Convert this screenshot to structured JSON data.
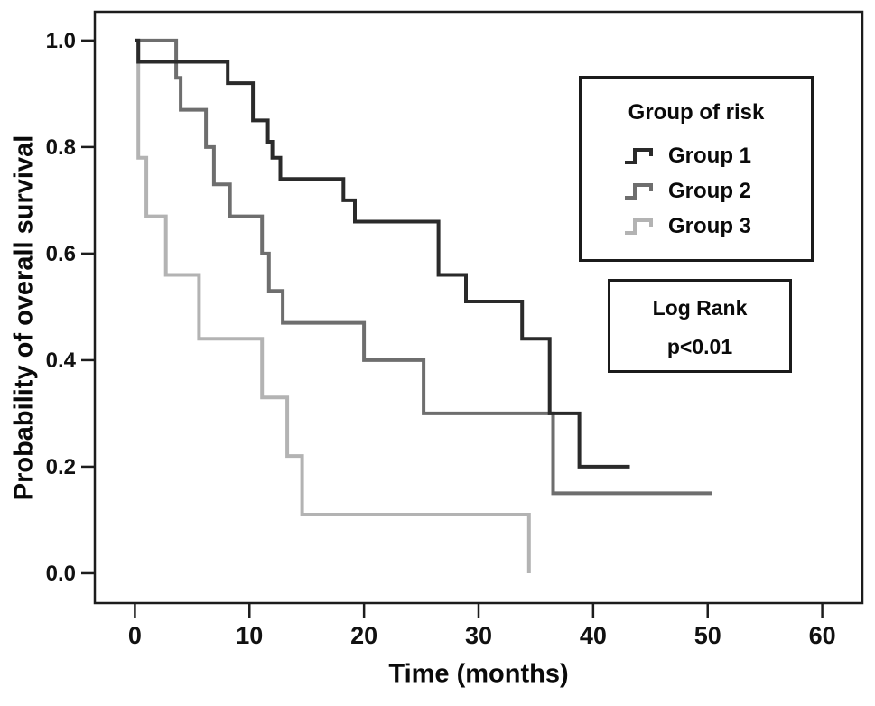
{
  "figure": {
    "x_axis_label": "Time (months)",
    "y_axis_label": "Probability of overall survival"
  },
  "legend": {
    "title": "Group of risk",
    "items": [
      {
        "label": "Group 1",
        "color": "#2a2a2a"
      },
      {
        "label": "Group 2",
        "color": "#6e6e6e"
      },
      {
        "label": "Group 3",
        "color": "#b3b3b3"
      }
    ]
  },
  "annotation": {
    "line1": "Log Rank",
    "line2": "p<0.01"
  },
  "chart_data": {
    "type": "line",
    "subtype": "kaplan-meier-step",
    "title": "",
    "xlabel": "Time (months)",
    "ylabel": "Probability of overall survival",
    "xlim": [
      -3.5,
      63.5
    ],
    "ylim": [
      -0.056,
      1.054
    ],
    "x_ticks": [
      0,
      10,
      20,
      30,
      40,
      50,
      60
    ],
    "y_ticks": [
      0.0,
      0.2,
      0.4,
      0.6,
      0.8,
      1.0
    ],
    "grid": false,
    "legend_position": "upper right",
    "legend_title": "Group of risk",
    "annotation_text": "Log Rank p<0.01",
    "series": [
      {
        "name": "Group 1",
        "color": "#2a2a2a",
        "points": [
          [
            0,
            1.0
          ],
          [
            0.3,
            0.96
          ],
          [
            8.1,
            0.92
          ],
          [
            10.3,
            0.85
          ],
          [
            11.6,
            0.81
          ],
          [
            12.0,
            0.78
          ],
          [
            12.7,
            0.74
          ],
          [
            18.2,
            0.7
          ],
          [
            19.2,
            0.66
          ],
          [
            26.5,
            0.56
          ],
          [
            28.9,
            0.51
          ],
          [
            33.8,
            0.44
          ],
          [
            36.2,
            0.3
          ],
          [
            38.8,
            0.2
          ]
        ],
        "end_time": 43.2
      },
      {
        "name": "Group 2",
        "color": "#6e6e6e",
        "points": [
          [
            0,
            1.0
          ],
          [
            3.6,
            0.93
          ],
          [
            4.0,
            0.87
          ],
          [
            6.2,
            0.8
          ],
          [
            6.9,
            0.73
          ],
          [
            8.3,
            0.67
          ],
          [
            11.1,
            0.6
          ],
          [
            11.7,
            0.53
          ],
          [
            12.9,
            0.47
          ],
          [
            20.0,
            0.4
          ],
          [
            25.2,
            0.3
          ],
          [
            36.5,
            0.15
          ]
        ],
        "end_time": 50.4
      },
      {
        "name": "Group 3",
        "color": "#b3b3b3",
        "points": [
          [
            0,
            1.0
          ],
          [
            0.3,
            0.78
          ],
          [
            1.0,
            0.67
          ],
          [
            2.7,
            0.56
          ],
          [
            5.6,
            0.44
          ],
          [
            11.1,
            0.33
          ],
          [
            13.3,
            0.22
          ],
          [
            14.6,
            0.11
          ],
          [
            34.4,
            0.0
          ]
        ],
        "end_time": 34.4
      }
    ]
  }
}
